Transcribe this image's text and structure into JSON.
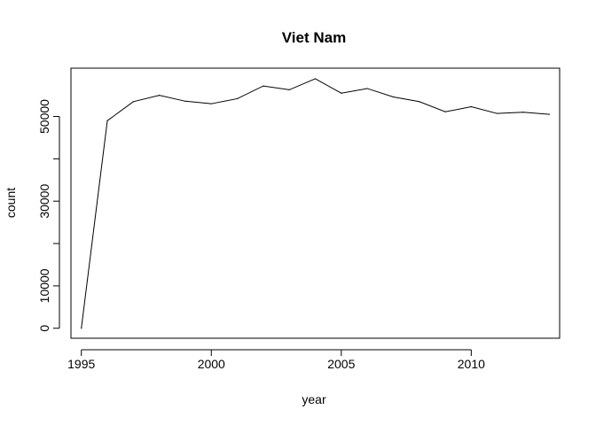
{
  "chart_data": {
    "type": "line",
    "title": "Viet Nam",
    "xlabel": "year",
    "ylabel": "count",
    "x": [
      1995,
      1996,
      1997,
      1998,
      1999,
      2000,
      2001,
      2002,
      2003,
      2004,
      2005,
      2006,
      2007,
      2008,
      2009,
      2010,
      2011,
      2012,
      2013
    ],
    "series": [
      {
        "values": [
          0,
          49000,
          53500,
          55000,
          53600,
          53000,
          54200,
          57200,
          56300,
          58900,
          55500,
          56600,
          54600,
          53500,
          51100,
          52300,
          50700,
          51000,
          50500
        ],
        "color": "#000000"
      }
    ],
    "xlim": [
      1994.6,
      2013.4
    ],
    "ylim": [
      -2360,
      61400
    ],
    "x_ticks": [
      1995,
      2000,
      2005,
      2010
    ],
    "x_tick_labels": [
      "1995",
      "2000",
      "2005",
      "2010"
    ],
    "y_ticks": [
      0,
      10000,
      20000,
      30000,
      40000,
      50000
    ],
    "y_tick_labels": [
      "0",
      "10000",
      "",
      "30000",
      "",
      "50000"
    ],
    "grid": false,
    "legend": "none"
  }
}
